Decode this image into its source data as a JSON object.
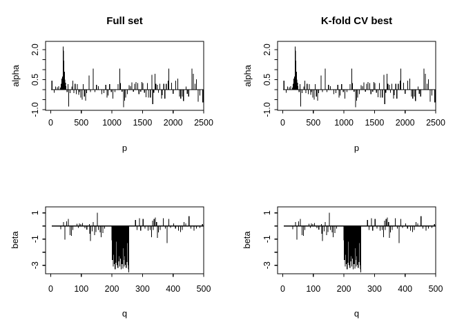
{
  "figure": {
    "background_color": "#ffffff",
    "foreground_color": "#000000",
    "grid": false,
    "legend": "none"
  },
  "chart_data": {
    "type": "line",
    "layout": "2x2 panel grid; top row = alpha coefficients vs p, bottom row = beta coefficients vs q; left column 'Full set' and right column 'K-fold CV best' show identical series; spikes drawn from a zero baseline",
    "panels": [
      {
        "title": "Full set",
        "xlabel": "p",
        "ylabel": "alpha",
        "series": "alpha"
      },
      {
        "title": "K-fold CV best",
        "xlabel": "p",
        "ylabel": "alpha",
        "series": "alpha"
      },
      {
        "title": "",
        "xlabel": "q",
        "ylabel": "beta",
        "series": "beta"
      },
      {
        "title": "",
        "xlabel": "q",
        "ylabel": "beta",
        "series": "beta"
      }
    ],
    "series": {
      "alpha": {
        "xlim": [
          0,
          2500
        ],
        "ylim": [
          -1.05,
          2.41
        ],
        "xticks": [
          0,
          500,
          1000,
          1500,
          2000,
          2500
        ],
        "yticks": [
          [
            -1,
            "-1.0"
          ],
          [
            -0.5,
            ""
          ],
          [
            0,
            ""
          ],
          [
            0.5,
            "0.5"
          ],
          [
            1,
            ""
          ],
          [
            1.5,
            ""
          ],
          [
            2,
            "2.0"
          ]
        ],
        "baseline": [
          5,
          2495
        ],
        "spikes": [
          [
            20,
            0.45
          ],
          [
            55,
            -0.15
          ],
          [
            80,
            0.15
          ],
          [
            105,
            0.12
          ],
          [
            130,
            0.18
          ],
          [
            160,
            0.1
          ],
          [
            170,
            0.3
          ],
          [
            182,
            0.55
          ],
          [
            195,
            0.65
          ],
          [
            203,
            2.15
          ],
          [
            210,
            1.95
          ],
          [
            216,
            1.45
          ],
          [
            224,
            0.9
          ],
          [
            232,
            0.5
          ],
          [
            241,
            0.35
          ],
          [
            250,
            0.18
          ],
          [
            268,
            -0.12
          ],
          [
            280,
            0.28
          ],
          [
            292,
            -0.85
          ],
          [
            318,
            -0.18
          ],
          [
            342,
            0.15
          ],
          [
            362,
            0.45
          ],
          [
            378,
            -0.18
          ],
          [
            398,
            0.3
          ],
          [
            417,
            -0.22
          ],
          [
            436,
            0.28
          ],
          [
            456,
            -0.25
          ],
          [
            470,
            -0.12
          ],
          [
            492,
            -0.4
          ],
          [
            512,
            -0.5
          ],
          [
            531,
            0.28
          ],
          [
            550,
            -0.35
          ],
          [
            568,
            -0.55
          ],
          [
            588,
            -0.18
          ],
          [
            628,
            0.7
          ],
          [
            648,
            -0.12
          ],
          [
            695,
            1.05
          ],
          [
            722,
            -0.12
          ],
          [
            748,
            0.25
          ],
          [
            778,
            0.18
          ],
          [
            835,
            -0.22
          ],
          [
            868,
            -0.18
          ],
          [
            900,
            0.25
          ],
          [
            922,
            -0.4
          ],
          [
            938,
            -0.3
          ],
          [
            962,
            0.28
          ],
          [
            990,
            -0.12
          ],
          [
            1018,
            -0.45
          ],
          [
            1048,
            -0.12
          ],
          [
            1102,
            0.28
          ],
          [
            1128,
            1.05
          ],
          [
            1142,
            0.33
          ],
          [
            1165,
            -0.1
          ],
          [
            1192,
            -0.88
          ],
          [
            1208,
            -0.55
          ],
          [
            1225,
            -0.4
          ],
          [
            1252,
            -0.22
          ],
          [
            1282,
            0.22
          ],
          [
            1305,
            0.17
          ],
          [
            1325,
            0.36
          ],
          [
            1352,
            -0.1
          ],
          [
            1372,
            0.3
          ],
          [
            1392,
            0.38
          ],
          [
            1422,
            0.33
          ],
          [
            1442,
            -0.22
          ],
          [
            1470,
            -0.1
          ],
          [
            1490,
            0.38
          ],
          [
            1508,
            0.33
          ],
          [
            1532,
            -0.15
          ],
          [
            1558,
            -0.38
          ],
          [
            1578,
            0.33
          ],
          [
            1595,
            -0.4
          ],
          [
            1628,
            -0.4
          ],
          [
            1652,
            0.75
          ],
          [
            1668,
            -0.72
          ],
          [
            1685,
            -0.15
          ],
          [
            1702,
            0.8
          ],
          [
            1718,
            0.3
          ],
          [
            1742,
            0.25
          ],
          [
            1762,
            -0.15
          ],
          [
            1782,
            0.3
          ],
          [
            1812,
            -0.45
          ],
          [
            1825,
            -0.28
          ],
          [
            1848,
            0.3
          ],
          [
            1865,
            -0.45
          ],
          [
            1888,
            0.3
          ],
          [
            1918,
            0.45
          ],
          [
            1932,
            1.05
          ],
          [
            1975,
            0.35
          ],
          [
            2000,
            -0.2
          ],
          [
            2045,
            0.45
          ],
          [
            2078,
            0.55
          ],
          [
            2105,
            -0.35
          ],
          [
            2125,
            -0.45
          ],
          [
            2148,
            -0.35
          ],
          [
            2170,
            -0.57
          ],
          [
            2210,
            0.15
          ],
          [
            2232,
            -0.2
          ],
          [
            2255,
            -0.35
          ],
          [
            2306,
            1.05
          ],
          [
            2330,
            0.8
          ],
          [
            2360,
            0.3
          ],
          [
            2382,
            0.52
          ],
          [
            2409,
            -0.6
          ],
          [
            2440,
            -0.3
          ],
          [
            2486,
            -0.63
          ]
        ]
      },
      "beta": {
        "xlim": [
          0,
          500
        ],
        "ylim": [
          -3.65,
          1.46
        ],
        "xticks": [
          0,
          100,
          200,
          300,
          400,
          500
        ],
        "yticks": [
          [
            1,
            "1"
          ],
          [
            0,
            ""
          ],
          [
            -1,
            "-1"
          ],
          [
            -2,
            ""
          ],
          [
            -3,
            "-3"
          ]
        ],
        "baseline": [
          3,
          500
        ],
        "spikes": [
          [
            33,
            -0.25
          ],
          [
            42,
            0.3
          ],
          [
            46,
            -1.05
          ],
          [
            52,
            0.35
          ],
          [
            58,
            0.55
          ],
          [
            63,
            -0.7
          ],
          [
            68,
            -0.75
          ],
          [
            72,
            -0.3
          ],
          [
            86,
            0.18
          ],
          [
            90,
            -0.15
          ],
          [
            94,
            0.2
          ],
          [
            98,
            0.15
          ],
          [
            104,
            0.22
          ],
          [
            112,
            -0.18
          ],
          [
            118,
            -0.28
          ],
          [
            126,
            0.15
          ],
          [
            128,
            -0.6
          ],
          [
            130,
            -1.15
          ],
          [
            135,
            -0.4
          ],
          [
            139,
            0.3
          ],
          [
            143,
            -0.7
          ],
          [
            148,
            -0.45
          ],
          [
            152,
            1.0
          ],
          [
            156,
            -0.3
          ],
          [
            161,
            -0.5
          ],
          [
            165,
            -0.85
          ],
          [
            170,
            -0.55
          ],
          [
            176,
            -0.2
          ],
          [
            200,
            -1.1
          ],
          [
            201.5,
            -2.6
          ],
          [
            203,
            -1.8
          ],
          [
            204.5,
            -3.1
          ],
          [
            206,
            -2.2
          ],
          [
            207.5,
            -2.9
          ],
          [
            209,
            -1.5
          ],
          [
            210.5,
            -3.3
          ],
          [
            212,
            -2.4
          ],
          [
            213.5,
            -2.8
          ],
          [
            215,
            -1.2
          ],
          [
            216.5,
            -3.0
          ],
          [
            218,
            -2.0
          ],
          [
            219.5,
            -3.2
          ],
          [
            221,
            -1.6
          ],
          [
            222.5,
            -2.7
          ],
          [
            224,
            -2.3
          ],
          [
            225.5,
            -3.1
          ],
          [
            227,
            -1.9
          ],
          [
            228.5,
            -2.5
          ],
          [
            230,
            -3.3
          ],
          [
            231.5,
            -1.4
          ],
          [
            233,
            -2.9
          ],
          [
            234.5,
            -2.1
          ],
          [
            236,
            -3.25
          ],
          [
            237.5,
            -1.7
          ],
          [
            239,
            -2.6
          ],
          [
            240.5,
            -3.1
          ],
          [
            242,
            -2.3
          ],
          [
            243.5,
            -2.95
          ],
          [
            245,
            -1.8
          ],
          [
            246.5,
            -3.2
          ],
          [
            248,
            -2.45
          ],
          [
            249.5,
            -2.75
          ],
          [
            251,
            -1.3
          ],
          [
            252.5,
            -3.0
          ],
          [
            253.5,
            -2.6
          ],
          [
            254.5,
            -3.3
          ],
          [
            255,
            -3.55
          ],
          [
            277,
            0.45
          ],
          [
            282,
            -0.3
          ],
          [
            290,
            0.6
          ],
          [
            294,
            -0.35
          ],
          [
            302,
            0.55
          ],
          [
            308,
            -0.2
          ],
          [
            318,
            -0.35
          ],
          [
            325,
            -0.3
          ],
          [
            330,
            -0.85
          ],
          [
            335,
            -0.3
          ],
          [
            333,
            0.4
          ],
          [
            338,
            0.55
          ],
          [
            342,
            0.65
          ],
          [
            346,
            0.3
          ],
          [
            352,
            -0.5
          ],
          [
            349,
            -0.9
          ],
          [
            358,
            -0.3
          ],
          [
            368,
            0.6
          ],
          [
            375,
            -0.2
          ],
          [
            380,
            -1.3
          ],
          [
            386,
            0.55
          ],
          [
            392,
            -0.15
          ],
          [
            402,
            0.2
          ],
          [
            408,
            -0.2
          ],
          [
            418,
            -0.35
          ],
          [
            424,
            -0.45
          ],
          [
            430,
            -0.3
          ],
          [
            436,
            0.3
          ],
          [
            441,
            0.2
          ],
          [
            452,
            0.75
          ],
          [
            458,
            -0.2
          ],
          [
            468,
            -0.35
          ],
          [
            476,
            -0.2
          ],
          [
            488,
            -0.15
          ],
          [
            496,
            0.15
          ]
        ]
      }
    }
  }
}
